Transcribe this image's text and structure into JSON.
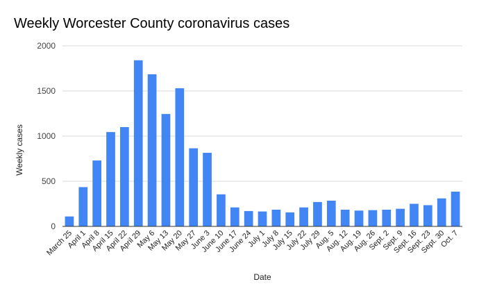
{
  "chart_data": {
    "type": "bar",
    "title": "Weekly Worcester County coronavirus cases",
    "xlabel": "Date",
    "ylabel": "Weekly cases",
    "ylim": [
      0,
      2000
    ],
    "yticks": [
      0,
      500,
      1000,
      1500,
      2000
    ],
    "grid": true,
    "legend": "none",
    "bar_color": "#4285f4",
    "categories": [
      "March 25",
      "April 1",
      "April 8",
      "April 15",
      "April 22",
      "April 29",
      "May 6",
      "May 13",
      "May 20",
      "May 27",
      "June 3",
      "June 10",
      "June 17",
      "June 24",
      "July 1",
      "July 8",
      "July 15",
      "July 22",
      "July 29",
      "Aug. 5",
      "Aug. 12",
      "Aug. 19",
      "Aug. 26",
      "Sept. 2",
      "Sept. 9",
      "Sept. 16",
      "Sept. 23",
      "Sept. 30",
      "Oct. 7"
    ],
    "values": [
      110,
      435,
      730,
      1045,
      1100,
      1840,
      1685,
      1245,
      1530,
      865,
      815,
      355,
      210,
      170,
      165,
      185,
      155,
      210,
      270,
      285,
      185,
      175,
      180,
      185,
      195,
      250,
      235,
      310,
      385
    ]
  }
}
